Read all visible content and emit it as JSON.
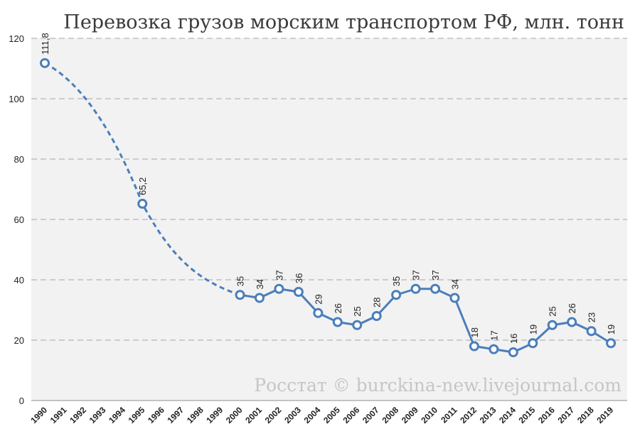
{
  "chart_data": {
    "type": "line",
    "title": "Перевозка грузов морским транспортом РФ, млн. тонн",
    "ylim": [
      0,
      120
    ],
    "yticks": [
      "0",
      "20",
      "40",
      "60",
      "80",
      "100",
      "120"
    ],
    "grid": true,
    "x": [
      "1990",
      "1991",
      "1992",
      "1993",
      "1994",
      "1995",
      "1996",
      "1997",
      "1998",
      "1999",
      "2000",
      "2001",
      "2002",
      "2003",
      "2004",
      "2005",
      "2006",
      "2007",
      "2008",
      "2009",
      "2010",
      "2011",
      "2012",
      "2013",
      "2014",
      "2015",
      "2016",
      "2017",
      "2018",
      "2019"
    ],
    "points": [
      {
        "x": "1990",
        "y": 111.8,
        "label": "111,8"
      },
      {
        "x": "1995",
        "y": 65.2,
        "label": "65,2"
      },
      {
        "x": "2000",
        "y": 35,
        "label": "35"
      },
      {
        "x": "2001",
        "y": 34,
        "label": "34"
      },
      {
        "x": "2002",
        "y": 37,
        "label": "37"
      },
      {
        "x": "2003",
        "y": 36,
        "label": "36"
      },
      {
        "x": "2004",
        "y": 29,
        "label": "29"
      },
      {
        "x": "2005",
        "y": 26,
        "label": "26"
      },
      {
        "x": "2006",
        "y": 25,
        "label": "25"
      },
      {
        "x": "2007",
        "y": 28,
        "label": "28"
      },
      {
        "x": "2008",
        "y": 35,
        "label": "35"
      },
      {
        "x": "2009",
        "y": 37,
        "label": "37"
      },
      {
        "x": "2010",
        "y": 37,
        "label": "37"
      },
      {
        "x": "2011",
        "y": 34,
        "label": "34"
      },
      {
        "x": "2012",
        "y": 18,
        "label": "18"
      },
      {
        "x": "2013",
        "y": 17,
        "label": "17"
      },
      {
        "x": "2014",
        "y": 16,
        "label": "16"
      },
      {
        "x": "2015",
        "y": 19,
        "label": "19"
      },
      {
        "x": "2016",
        "y": 25,
        "label": "25"
      },
      {
        "x": "2017",
        "y": 26,
        "label": "26"
      },
      {
        "x": "2018",
        "y": 23,
        "label": "23"
      },
      {
        "x": "2019",
        "y": 19,
        "label": "19"
      }
    ],
    "dashed_segment": [
      "1990",
      "2000"
    ],
    "line_color": "#4a7ebb",
    "plot_background": "#f2f2f2"
  },
  "watermark": "Росстат © burckina-new.livejournal.com"
}
